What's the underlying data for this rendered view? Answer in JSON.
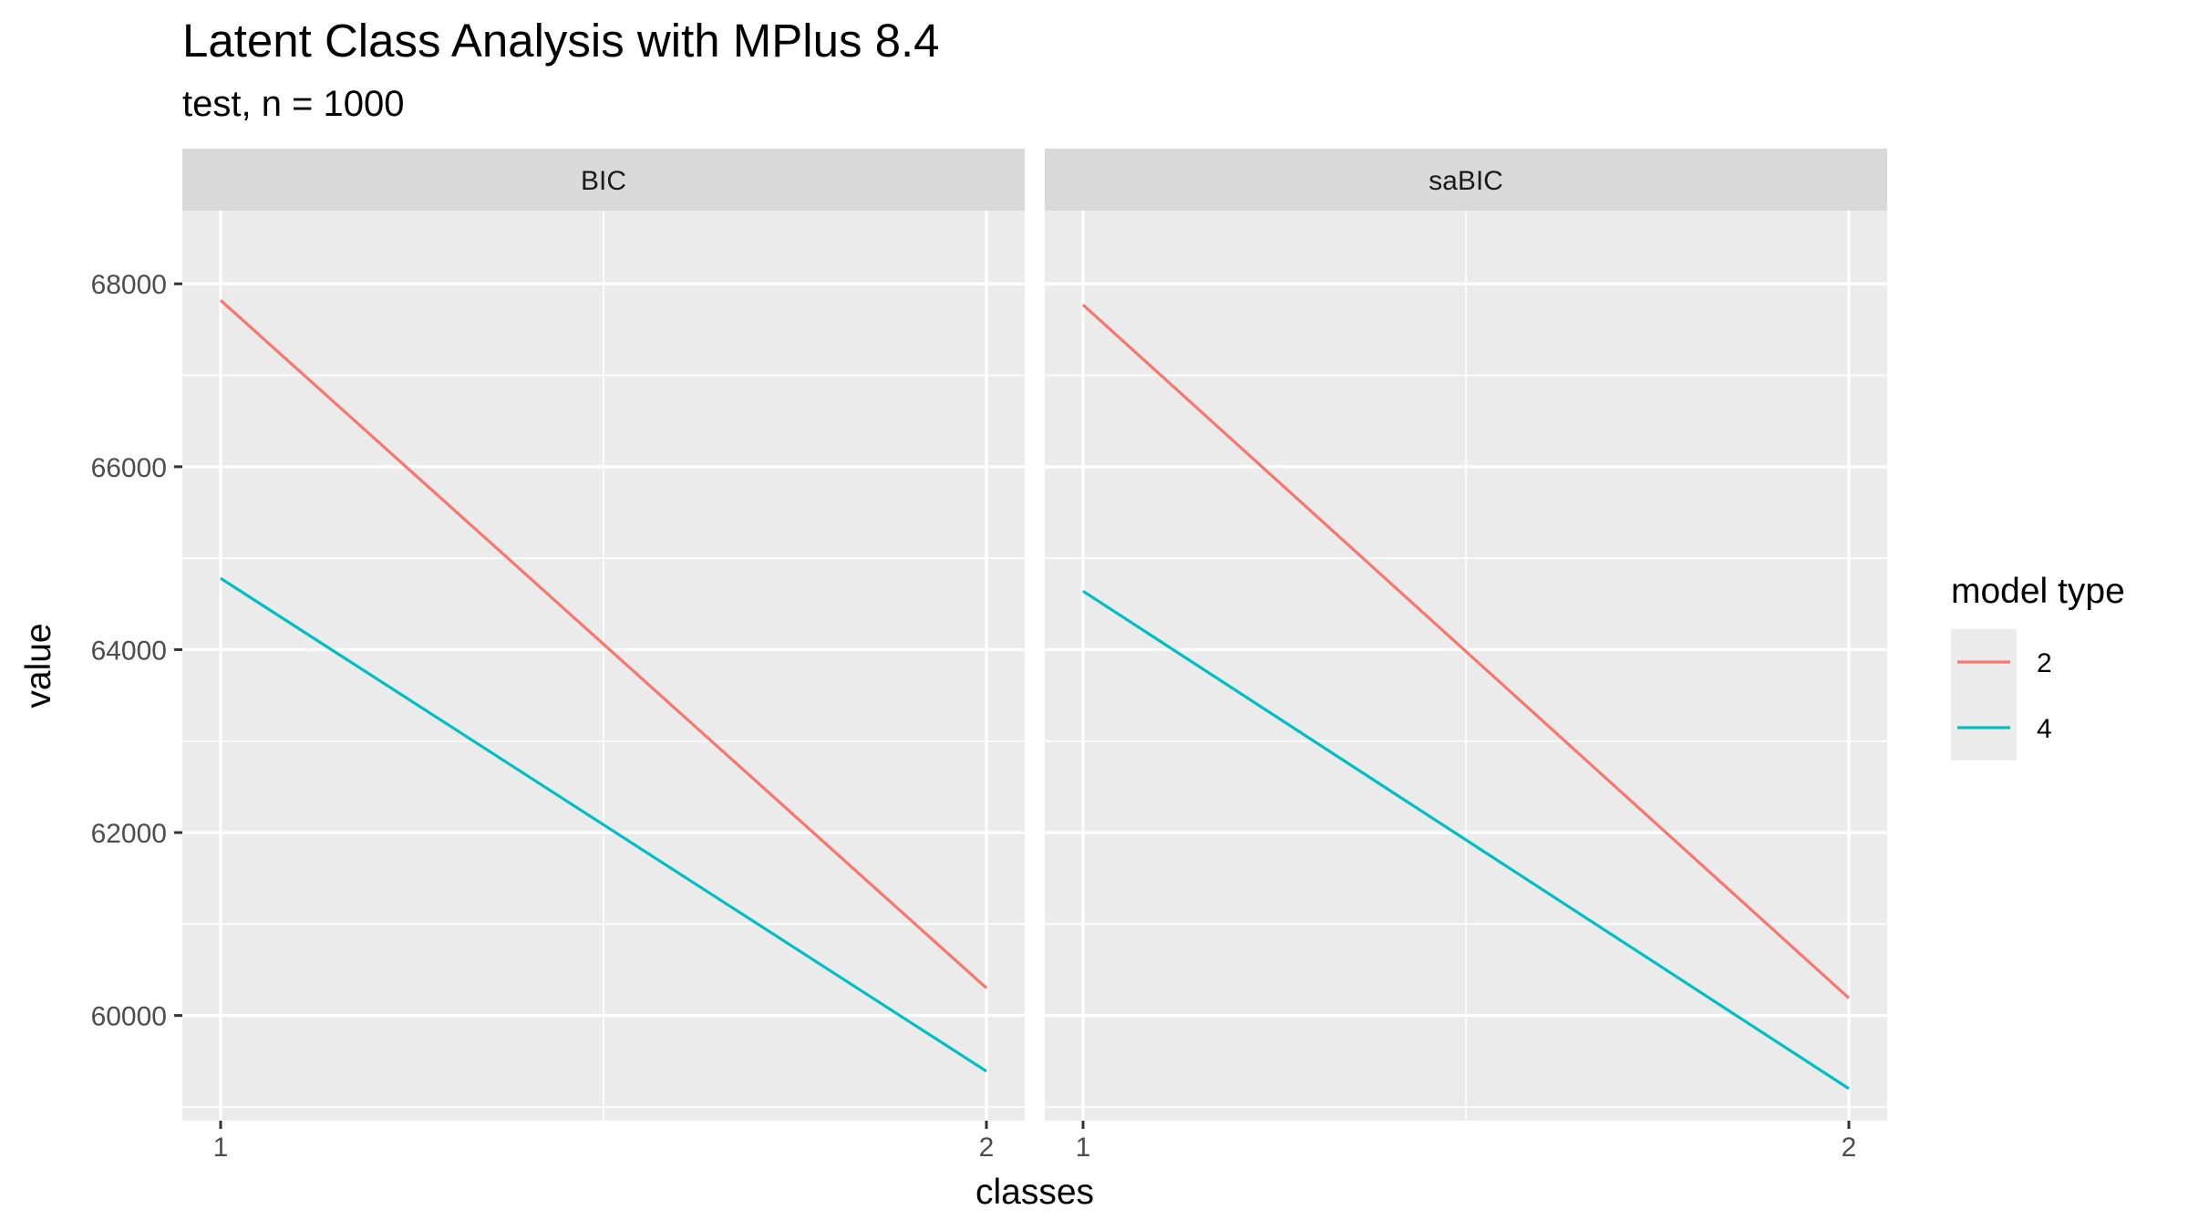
{
  "colors": {
    "panel_bg": "#EBEBEB",
    "strip_bg": "#D9D9D9",
    "grid": "#FFFFFF",
    "tick": "#333333"
  },
  "chart_data": {
    "type": "line",
    "title": "Latent Class Analysis with MPlus 8.4",
    "subtitle": "test, n = 1000",
    "xlabel": "classes",
    "ylabel": "value",
    "xlim": [
      0.95,
      2.05
    ],
    "ylim": [
      58850,
      68800
    ],
    "x_ticks": [
      1,
      2
    ],
    "x_tick_labels": [
      "1",
      "2"
    ],
    "y_ticks": [
      60000,
      62000,
      64000,
      66000,
      68000
    ],
    "y_tick_labels": [
      "60000",
      "62000",
      "64000",
      "66000",
      "68000"
    ],
    "legend": {
      "title": "model type",
      "position": "right",
      "entries": [
        {
          "label": "2",
          "color": "#F8766D"
        },
        {
          "label": "4",
          "color": "#00BFC4"
        }
      ]
    },
    "facets": [
      {
        "label": "BIC",
        "series": [
          {
            "name": "2",
            "color": "#F8766D",
            "x": [
              1,
              2
            ],
            "values": [
              67820,
              60300
            ]
          },
          {
            "name": "4",
            "color": "#00BFC4",
            "x": [
              1,
              2
            ],
            "values": [
              64780,
              59390
            ]
          }
        ]
      },
      {
        "label": "saBIC",
        "series": [
          {
            "name": "2",
            "color": "#F8766D",
            "x": [
              1,
              2
            ],
            "values": [
              67770,
              60190
            ]
          },
          {
            "name": "4",
            "color": "#00BFC4",
            "x": [
              1,
              2
            ],
            "values": [
              64640,
              59200
            ]
          }
        ]
      }
    ]
  }
}
